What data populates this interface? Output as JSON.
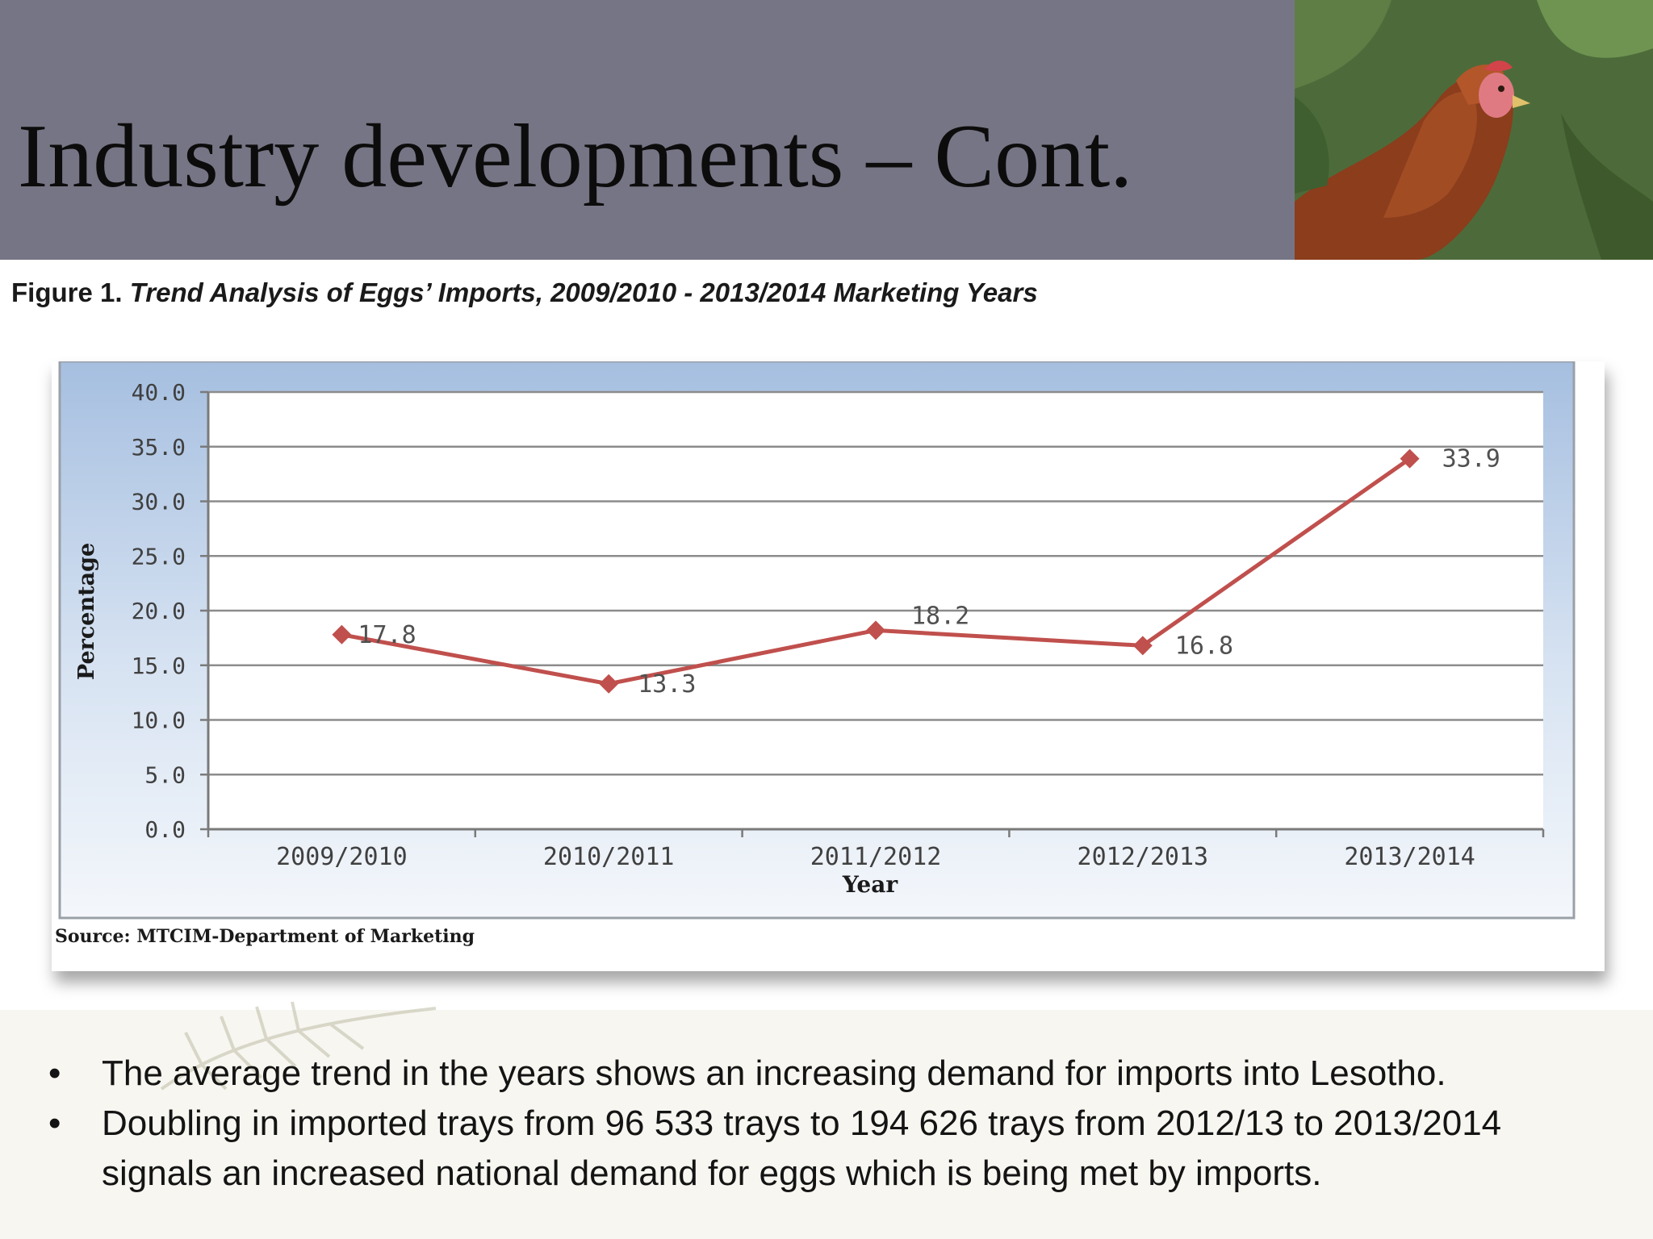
{
  "slide": {
    "title": "Industry developments – Cont."
  },
  "figure": {
    "caption_label": "Figure 1.",
    "caption_text": "Trend Analysis of Eggs’ Imports, 2009/2010 - 2013/2014 Marketing Years",
    "source": "Source: MTCIM-Department of Marketing"
  },
  "photo": {
    "icon": "hen-photo"
  },
  "chart_data": {
    "type": "line",
    "title": "",
    "xlabel": "Year",
    "ylabel": "Percentage",
    "categories": [
      "2009/2010",
      "2010/2011",
      "2011/2012",
      "2012/2013",
      "2013/2014"
    ],
    "series": [
      {
        "values": [
          17.8,
          13.3,
          18.2,
          16.8,
          33.9
        ],
        "color": "#c0504d"
      }
    ],
    "data_labels": [
      "17.8",
      "13.3",
      "18.2",
      "16.8",
      "33.9"
    ],
    "ylim": [
      0,
      40
    ],
    "yticks": [
      "0.0",
      "5.0",
      "10.0",
      "15.0",
      "20.0",
      "25.0",
      "30.0",
      "35.0",
      "40.0"
    ],
    "grid": true,
    "legend": "none"
  },
  "bullets": [
    "The average trend in the years shows an increasing demand for imports into Lesotho.",
    "Doubling in imported trays from 96 533 trays to 194 626 trays from 2012/13 to 2013/2014 signals an increased national demand for eggs which is being met by imports."
  ],
  "bullet_glyph": "•"
}
